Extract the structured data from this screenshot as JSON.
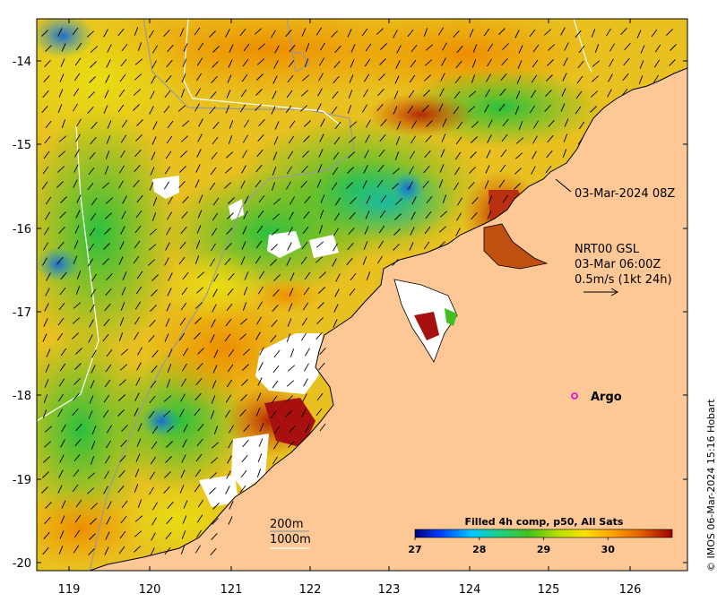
{
  "map": {
    "x_ticks": [
      "119",
      "120",
      "121",
      "122",
      "123",
      "124",
      "125",
      "126"
    ],
    "y_ticks": [
      "-14",
      "-15",
      "-16",
      "-17",
      "-18",
      "-19",
      "-20"
    ],
    "colors": {
      "land": "#fdc896",
      "no_data": "#ffffff",
      "coast": "#000000",
      "contour_200": "#9a9a9a",
      "contour_1000": "#ffffff",
      "argo_marker": "#e000e0"
    }
  },
  "annotations": {
    "date_label": "03-Mar-2024 08Z",
    "wind_source": "NRT00 GSL",
    "wind_time": "03-Mar 06:00Z",
    "wind_scale": "0.5m/s (1kt 24h)",
    "argo_label": "Argo",
    "contour_200": "200m",
    "contour_1000": "1000m"
  },
  "colorbar": {
    "title": "Filled 4h comp, p50, All Sats",
    "ticks": [
      "27",
      "28",
      "29",
      "30"
    ],
    "range": [
      27,
      31
    ],
    "stops": [
      "#00007f",
      "#0040ff",
      "#00c8ff",
      "#20d080",
      "#40c020",
      "#b0e000",
      "#ffe000",
      "#ffa000",
      "#e06000",
      "#a00000"
    ]
  },
  "credit": "© IMOS 06-Mar-2024 15:16 Hobart"
}
